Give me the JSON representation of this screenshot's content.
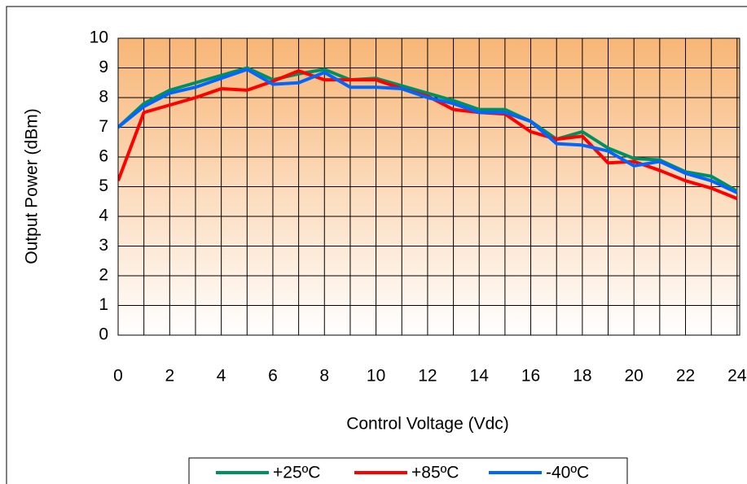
{
  "chart_data": {
    "type": "line",
    "x_label": "Control Voltage (Vdc)",
    "y_label": "Output Power (dBm)",
    "x": [
      0,
      1,
      2,
      3,
      4,
      5,
      6,
      7,
      8,
      9,
      10,
      11,
      12,
      13,
      14,
      15,
      16,
      17,
      18,
      19,
      20,
      21,
      22,
      23,
      24
    ],
    "series": [
      {
        "name": "+25ºC",
        "color": "#009060",
        "values": [
          7.0,
          7.8,
          8.25,
          8.5,
          8.75,
          9.0,
          8.6,
          8.8,
          8.95,
          8.6,
          8.65,
          8.4,
          8.15,
          7.9,
          7.6,
          7.6,
          7.2,
          6.6,
          6.85,
          6.3,
          5.95,
          5.9,
          5.5,
          5.35,
          4.85
        ]
      },
      {
        "name": "+85ºC",
        "color": "#ff0000",
        "values": [
          5.2,
          7.5,
          7.75,
          8.0,
          8.3,
          8.25,
          8.55,
          8.9,
          8.6,
          8.6,
          8.6,
          8.3,
          8.05,
          7.6,
          7.5,
          7.45,
          6.85,
          6.6,
          6.7,
          5.8,
          5.85,
          5.55,
          5.2,
          4.95,
          4.6
        ]
      },
      {
        "name": "-40ºC",
        "color": "#0066ff",
        "values": [
          7.0,
          7.7,
          8.15,
          8.35,
          8.65,
          8.95,
          8.45,
          8.5,
          8.85,
          8.35,
          8.35,
          8.3,
          8.0,
          7.8,
          7.5,
          7.5,
          7.2,
          6.45,
          6.4,
          6.2,
          5.7,
          5.85,
          5.45,
          5.2,
          4.8
        ]
      }
    ],
    "xlim": [
      0,
      24.1
    ],
    "xticks": [
      0,
      2,
      4,
      6,
      8,
      10,
      12,
      14,
      16,
      18,
      20,
      22,
      24
    ],
    "ylim": [
      0,
      10
    ],
    "yticks": [
      0,
      1,
      2,
      3,
      4,
      5,
      6,
      7,
      8,
      9,
      10
    ],
    "grid": true
  }
}
